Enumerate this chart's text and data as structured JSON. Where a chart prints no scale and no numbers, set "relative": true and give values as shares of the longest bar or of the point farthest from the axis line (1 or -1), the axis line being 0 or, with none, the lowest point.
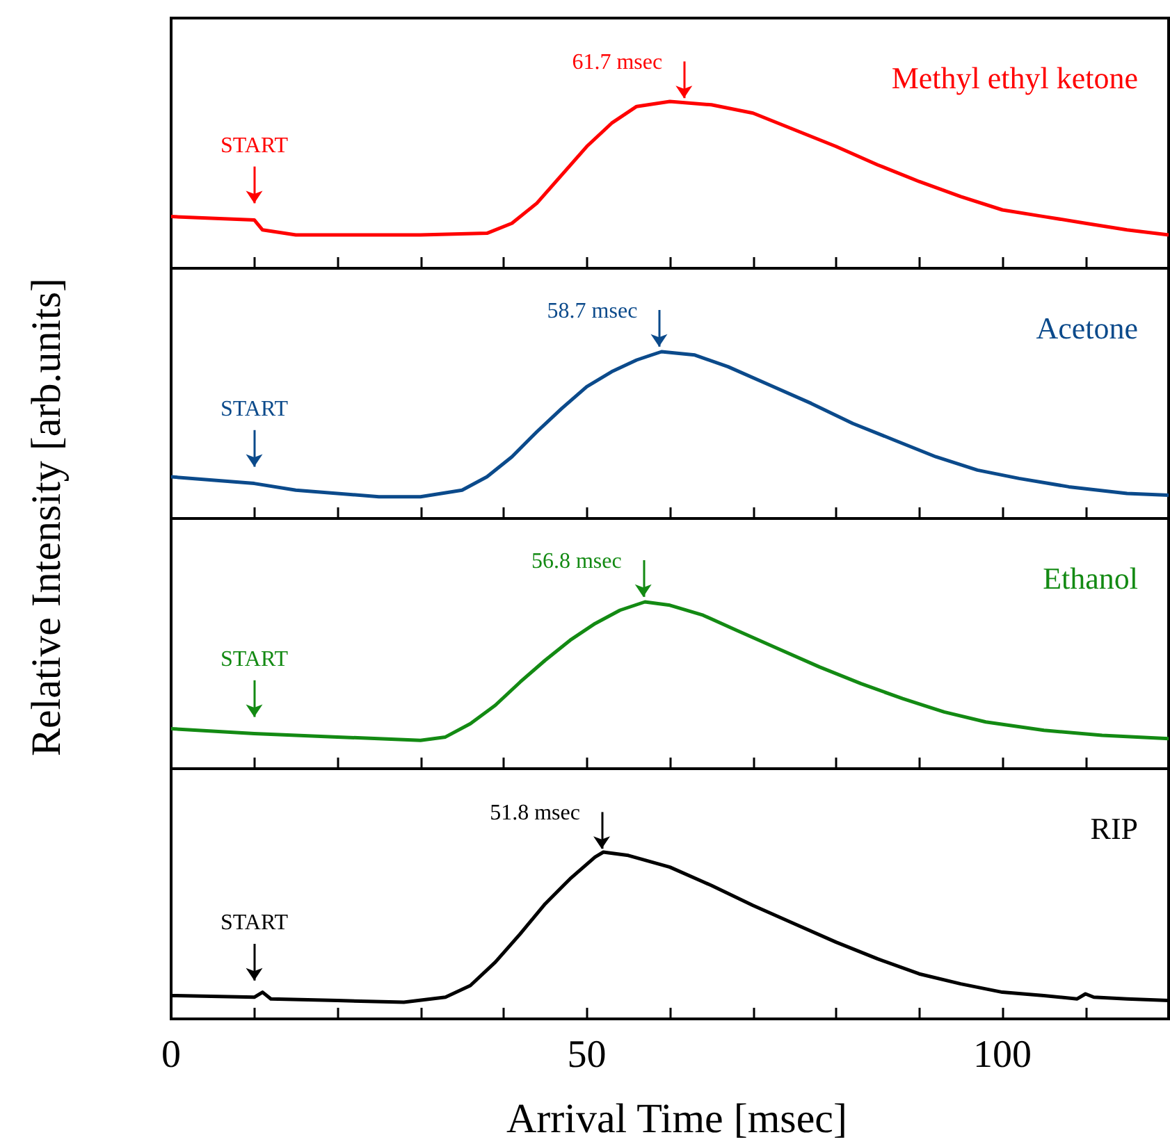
{
  "chart_data": [
    {
      "type": "line",
      "relative": true,
      "ylabel": "Relative Intensity [arb.units]",
      "xlim": [
        0,
        120
      ],
      "xticks": [
        0,
        {
          "value": 10,
          "label": null
        },
        {
          "value": 20,
          "label": null
        },
        {
          "value": 30,
          "label": null
        },
        {
          "value": 40,
          "label": null
        },
        50,
        {
          "value": 60,
          "label": null
        },
        {
          "value": 70,
          "label": null
        },
        {
          "value": 80,
          "label": null
        },
        {
          "value": 90,
          "label": null
        },
        100,
        {
          "value": 110,
          "label": null
        }
      ],
      "tick_labels": false,
      "grid": false,
      "legend": false,
      "marker": "none",
      "series": [
        {
          "name": "Methyl ethyl ketone",
          "color": "#ff0000",
          "x": [
            0,
            10,
            11,
            15,
            20,
            30,
            38,
            41,
            44,
            47,
            50,
            53,
            56,
            60,
            65,
            70,
            75,
            80,
            85,
            90,
            95,
            100,
            105,
            110,
            115,
            120
          ],
          "values": [
            0.31,
            0.29,
            0.23,
            0.2,
            0.2,
            0.2,
            0.21,
            0.27,
            0.39,
            0.56,
            0.73,
            0.87,
            0.97,
            1,
            0.98,
            0.93,
            0.83,
            0.73,
            0.62,
            0.52,
            0.43,
            0.35,
            0.31,
            0.27,
            0.23,
            0.2
          ]
        }
      ],
      "annotations": [
        {
          "text": "START",
          "x": 10,
          "y": 0.29
        },
        {
          "text": "61.7 msec",
          "x": 61.7,
          "y": 0.99
        }
      ]
    },
    {
      "type": "line",
      "relative": true,
      "xlim": [
        0,
        120
      ],
      "xticks": [
        0,
        {
          "value": 10,
          "label": null
        },
        {
          "value": 20,
          "label": null
        },
        {
          "value": 30,
          "label": null
        },
        {
          "value": 40,
          "label": null
        },
        50,
        {
          "value": 60,
          "label": null
        },
        {
          "value": 70,
          "label": null
        },
        {
          "value": 80,
          "label": null
        },
        {
          "value": 90,
          "label": null
        },
        100,
        {
          "value": 110,
          "label": null
        }
      ],
      "tick_labels": false,
      "grid": false,
      "legend": false,
      "marker": "none",
      "series": [
        {
          "name": "Acetone",
          "color": "#0b4a8b",
          "x": [
            0,
            10,
            15,
            25,
            30,
            35,
            38,
            41,
            44,
            47,
            50,
            53,
            56,
            59,
            63,
            67,
            72,
            77,
            82,
            87,
            92,
            97,
            102,
            108,
            115,
            120
          ],
          "values": [
            0.25,
            0.21,
            0.17,
            0.13,
            0.13,
            0.17,
            0.25,
            0.37,
            0.52,
            0.66,
            0.79,
            0.88,
            0.95,
            1,
            0.98,
            0.91,
            0.8,
            0.69,
            0.57,
            0.47,
            0.37,
            0.29,
            0.24,
            0.19,
            0.15,
            0.14
          ]
        }
      ],
      "annotations": [
        {
          "text": "START",
          "x": 10,
          "y": 0.21
        },
        {
          "text": "58.7 msec",
          "x": 58.7,
          "y": 1.0
        }
      ]
    },
    {
      "type": "line",
      "relative": true,
      "xlim": [
        0,
        120
      ],
      "xticks": [
        0,
        {
          "value": 10,
          "label": null
        },
        {
          "value": 20,
          "label": null
        },
        {
          "value": 30,
          "label": null
        },
        {
          "value": 40,
          "label": null
        },
        50,
        {
          "value": 60,
          "label": null
        },
        {
          "value": 70,
          "label": null
        },
        {
          "value": 80,
          "label": null
        },
        {
          "value": 90,
          "label": null
        },
        100,
        {
          "value": 110,
          "label": null
        }
      ],
      "tick_labels": false,
      "grid": false,
      "legend": false,
      "marker": "none",
      "series": [
        {
          "name": "Ethanol",
          "color": "#138a13",
          "x": [
            0,
            10,
            20,
            30,
            33,
            36,
            39,
            42,
            45,
            48,
            51,
            54,
            57,
            60,
            64,
            68,
            73,
            78,
            83,
            88,
            93,
            98,
            105,
            112,
            120
          ],
          "values": [
            0.24,
            0.21,
            0.19,
            0.17,
            0.19,
            0.27,
            0.38,
            0.52,
            0.65,
            0.77,
            0.87,
            0.95,
            1,
            0.98,
            0.92,
            0.83,
            0.72,
            0.61,
            0.51,
            0.42,
            0.34,
            0.28,
            0.23,
            0.2,
            0.18
          ]
        }
      ],
      "annotations": [
        {
          "text": "START",
          "x": 10,
          "y": 0.21
        },
        {
          "text": "56.8 msec",
          "x": 56.8,
          "y": 1.0
        }
      ]
    },
    {
      "type": "line",
      "relative": true,
      "xlabel": "Arrival Time [msec]",
      "xlim": [
        0,
        120
      ],
      "xticks": [
        0,
        {
          "value": 10,
          "label": null
        },
        {
          "value": 20,
          "label": null
        },
        {
          "value": 30,
          "label": null
        },
        {
          "value": 40,
          "label": null
        },
        50,
        {
          "value": 60,
          "label": null
        },
        {
          "value": 70,
          "label": null
        },
        {
          "value": 80,
          "label": null
        },
        {
          "value": 90,
          "label": null
        },
        100,
        {
          "value": 110,
          "label": null
        }
      ],
      "tick_labels": "x",
      "grid": false,
      "legend": false,
      "marker": "none",
      "series": [
        {
          "name": "RIP",
          "color": "#000000",
          "x": [
            0,
            10,
            11,
            12,
            20,
            28,
            33,
            36,
            39,
            42,
            45,
            48,
            51,
            52,
            55,
            60,
            65,
            70,
            75,
            80,
            85,
            90,
            95,
            100,
            105,
            109,
            110,
            111,
            115,
            120
          ],
          "values": [
            0.14,
            0.13,
            0.16,
            0.12,
            0.11,
            0.1,
            0.13,
            0.2,
            0.34,
            0.51,
            0.69,
            0.84,
            0.97,
            1,
            0.98,
            0.91,
            0.8,
            0.68,
            0.57,
            0.46,
            0.36,
            0.27,
            0.21,
            0.16,
            0.14,
            0.12,
            0.15,
            0.13,
            0.12,
            0.11
          ]
        }
      ],
      "annotations": [
        {
          "text": "START",
          "x": 10,
          "y": 0.13
        },
        {
          "text": "51.8 msec",
          "x": 51.8,
          "y": 0.99
        }
      ]
    }
  ]
}
